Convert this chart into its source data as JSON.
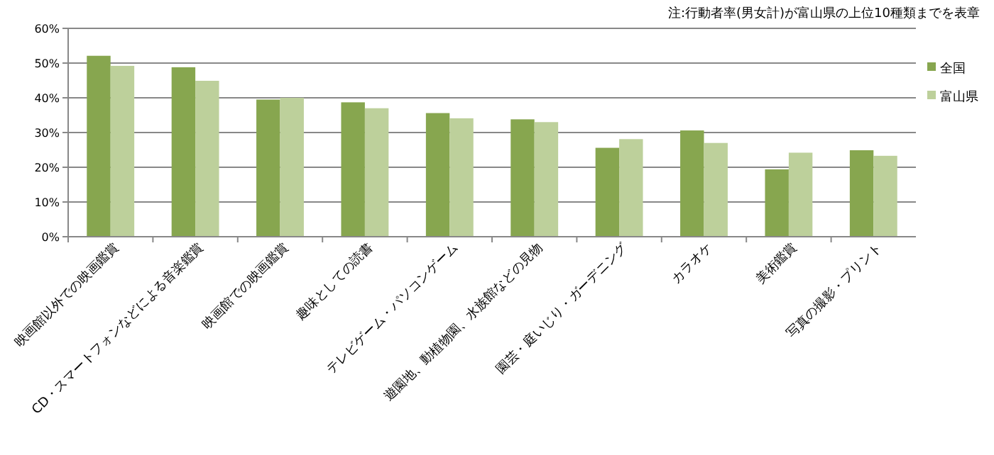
{
  "chart_data": {
    "type": "bar",
    "categories": [
      "映画館以外での映画鑑賞",
      "CD・スマートフォンなどによる音楽鑑賞",
      "映画館での映画鑑賞",
      "趣味としての読書",
      "テレビゲーム・パソコンゲーム",
      "遊園地、動植物園、水族館などの見物",
      "園芸・庭いじり・ガーデニング",
      "カラオケ",
      "美術鑑賞",
      "写真の撮影・プリント"
    ],
    "series": [
      {
        "name": "全国",
        "color": "#87a64f",
        "values": [
          52.1,
          48.8,
          39.5,
          38.7,
          35.6,
          33.8,
          25.6,
          30.6,
          19.4,
          24.9
        ]
      },
      {
        "name": "富山県",
        "color": "#bdd09b",
        "values": [
          49.2,
          44.9,
          40.0,
          37.0,
          34.1,
          33.0,
          28.1,
          27.0,
          24.2,
          23.3
        ]
      }
    ],
    "ylim": [
      0,
      60
    ],
    "yticks": [
      {
        "value": 0,
        "label": "0%"
      },
      {
        "value": 10,
        "label": "10%"
      },
      {
        "value": 20,
        "label": "20%"
      },
      {
        "value": 30,
        "label": "30%"
      },
      {
        "value": 40,
        "label": "40%"
      },
      {
        "value": 50,
        "label": "50%"
      },
      {
        "value": 60,
        "label": "60%"
      }
    ],
    "grid": "y",
    "legend": "right",
    "annotations": [
      "注:行動者率(男女計)が富山県の上位10種類までを表章"
    ]
  }
}
